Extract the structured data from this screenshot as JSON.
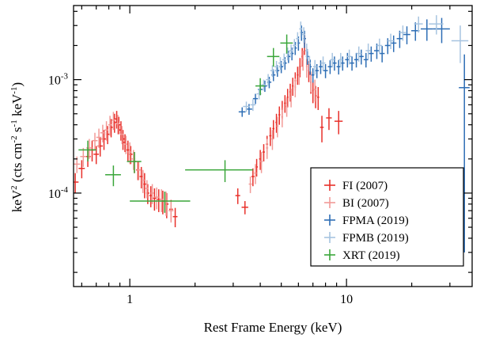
{
  "chart_data": {
    "type": "scatter",
    "x_scale": "log",
    "y_scale": "log",
    "xlim": [
      0.55,
      38
    ],
    "ylim": [
      1.5e-05,
      0.0045
    ],
    "xlabel": "Rest Frame Energy (keV)",
    "ylabel_parts": {
      "pre": "keV",
      "sup1": "2",
      "mid": " (cts cm",
      "sup2": "-2",
      "mid2": " s",
      "sup3": "-1",
      "mid3": " keV",
      "sup4": "-1",
      "post": ")"
    },
    "x_ticks": [
      {
        "value": 1,
        "label": "1"
      },
      {
        "value": 10,
        "label": "10"
      }
    ],
    "y_ticks": [
      {
        "value": 0.0001,
        "base": "10",
        "exp": "-4"
      },
      {
        "value": 0.001,
        "base": "10",
        "exp": "-3"
      }
    ],
    "grid": false,
    "legend_position": "bottom-right",
    "series": [
      {
        "name": "FI (2007)",
        "color": "#e8302a",
        "points": [
          [
            0.56,
            0.000125,
            0.02,
            2.5e-05
          ],
          [
            0.6,
            0.000165,
            0.02,
            3e-05
          ],
          [
            0.64,
            0.00021,
            0.02,
            4e-05
          ],
          [
            0.67,
            0.00024,
            0.02,
            5e-05
          ],
          [
            0.7,
            0.00022,
            0.02,
            4e-05
          ],
          [
            0.73,
            0.00026,
            0.02,
            5e-05
          ],
          [
            0.76,
            0.0003,
            0.02,
            6e-05
          ],
          [
            0.79,
            0.00033,
            0.015,
            6e-05
          ],
          [
            0.82,
            0.00038,
            0.015,
            7e-05
          ],
          [
            0.85,
            0.00042,
            0.015,
            8e-05
          ],
          [
            0.87,
            0.00045,
            0.015,
            8e-05
          ],
          [
            0.89,
            0.0004,
            0.015,
            7e-05
          ],
          [
            0.91,
            0.00036,
            0.015,
            7e-05
          ],
          [
            0.93,
            0.0003,
            0.015,
            6e-05
          ],
          [
            0.95,
            0.00028,
            0.015,
            5e-05
          ],
          [
            0.98,
            0.00024,
            0.015,
            5e-05
          ],
          [
            1.01,
            0.00022,
            0.02,
            4e-05
          ],
          [
            1.05,
            0.00019,
            0.02,
            4e-05
          ],
          [
            1.09,
            0.00016,
            0.02,
            3e-05
          ],
          [
            1.13,
            0.00014,
            0.02,
            3e-05
          ],
          [
            1.17,
            0.00012,
            0.02,
            3e-05
          ],
          [
            1.21,
            0.0001,
            0.02,
            2e-05
          ],
          [
            1.25,
            9.5e-05,
            0.02,
            2e-05
          ],
          [
            1.3,
            9e-05,
            0.02,
            2e-05
          ],
          [
            1.36,
            8.8e-05,
            0.03,
            2e-05
          ],
          [
            1.42,
            8.5e-05,
            0.03,
            2e-05
          ],
          [
            1.48,
            8e-05,
            0.03,
            2e-05
          ],
          [
            1.55,
            7.2e-05,
            0.03,
            1.5e-05
          ],
          [
            1.62,
            6.2e-05,
            0.04,
            1.2e-05
          ],
          [
            3.15,
            9.5e-05,
            0.08,
            1.5e-05
          ],
          [
            3.4,
            7.5e-05,
            0.12,
            1e-05
          ],
          [
            3.7,
            0.00014,
            0.06,
            2.5e-05
          ],
          [
            3.85,
            0.00017,
            0.05,
            3e-05
          ],
          [
            4.0,
            0.0002,
            0.05,
            4e-05
          ],
          [
            4.15,
            0.00023,
            0.05,
            4e-05
          ],
          [
            4.3,
            0.00027,
            0.05,
            5e-05
          ],
          [
            4.45,
            0.00032,
            0.05,
            6e-05
          ],
          [
            4.6,
            0.00037,
            0.05,
            7e-05
          ],
          [
            4.75,
            0.00042,
            0.05,
            8e-05
          ],
          [
            4.9,
            0.00049,
            0.05,
            9e-05
          ],
          [
            5.05,
            0.00055,
            0.05,
            0.0001
          ],
          [
            5.2,
            0.00062,
            0.05,
            0.00011
          ],
          [
            5.35,
            0.0007,
            0.05,
            0.00013
          ],
          [
            5.5,
            0.00078,
            0.05,
            0.00014
          ],
          [
            5.65,
            0.00088,
            0.05,
            0.00016
          ],
          [
            5.8,
            0.00098,
            0.05,
            0.00018
          ],
          [
            5.95,
            0.0011,
            0.05,
            0.0002
          ],
          [
            6.1,
            0.0013,
            0.05,
            0.00025
          ],
          [
            6.25,
            0.0016,
            0.05,
            0.0003
          ],
          [
            6.4,
            0.0021,
            0.05,
            0.00045
          ],
          [
            6.55,
            0.0016,
            0.05,
            0.0003
          ],
          [
            6.7,
            0.0012,
            0.05,
            0.00025
          ],
          [
            6.85,
            0.00095,
            0.05,
            0.0002
          ],
          [
            7.0,
            0.0008,
            0.05,
            0.00018
          ],
          [
            7.2,
            0.00072,
            0.08,
            0.00016
          ],
          [
            7.4,
            0.0007,
            0.08,
            0.00016
          ],
          [
            7.7,
            0.00038,
            0.15,
            0.0001
          ],
          [
            8.3,
            0.00046,
            0.25,
            0.0001
          ],
          [
            9.2,
            0.00043,
            0.4,
            0.0001
          ]
        ]
      },
      {
        "name": "BI (2007)",
        "color": "#f29a97",
        "points": [
          [
            0.57,
            0.00018,
            0.02,
            3e-05
          ],
          [
            0.61,
            0.00021,
            0.02,
            4e-05
          ],
          [
            0.65,
            0.00025,
            0.02,
            5e-05
          ],
          [
            0.69,
            0.00029,
            0.02,
            5e-05
          ],
          [
            0.72,
            0.00031,
            0.02,
            6e-05
          ],
          [
            0.75,
            0.00034,
            0.02,
            6e-05
          ],
          [
            0.78,
            0.00036,
            0.015,
            7e-05
          ],
          [
            0.81,
            0.0004,
            0.015,
            8e-05
          ],
          [
            0.84,
            0.00044,
            0.015,
            8e-05
          ],
          [
            0.88,
            0.00041,
            0.015,
            8e-05
          ],
          [
            0.92,
            0.00033,
            0.015,
            6e-05
          ],
          [
            0.96,
            0.00027,
            0.015,
            5e-05
          ],
          [
            1.0,
            0.00023,
            0.02,
            5e-05
          ],
          [
            1.04,
            0.0002,
            0.02,
            4e-05
          ],
          [
            1.1,
            0.00016,
            0.02,
            3e-05
          ],
          [
            1.15,
            0.00013,
            0.02,
            3e-05
          ],
          [
            1.2,
            0.00011,
            0.02,
            2e-05
          ],
          [
            1.27,
            0.0001,
            0.02,
            2e-05
          ],
          [
            1.33,
            9.2e-05,
            0.03,
            2e-05
          ],
          [
            1.4,
            8.8e-05,
            0.03,
            2e-05
          ],
          [
            1.47,
            8.3e-05,
            0.03,
            2e-05
          ],
          [
            1.55,
            7e-05,
            0.04,
            1.5e-05
          ],
          [
            3.6,
            0.00012,
            0.06,
            2e-05
          ],
          [
            3.8,
            0.00015,
            0.05,
            3e-05
          ],
          [
            4.05,
            0.00019,
            0.05,
            4e-05
          ],
          [
            4.3,
            0.00025,
            0.05,
            5e-05
          ],
          [
            4.55,
            0.0003,
            0.05,
            6e-05
          ],
          [
            4.8,
            0.00039,
            0.05,
            8e-05
          ],
          [
            5.05,
            0.00047,
            0.05,
            9e-05
          ],
          [
            5.3,
            0.00058,
            0.05,
            0.00011
          ],
          [
            5.55,
            0.0007,
            0.05,
            0.00013
          ],
          [
            5.8,
            0.00086,
            0.05,
            0.00016
          ],
          [
            6.05,
            0.0011,
            0.05,
            0.0002
          ],
          [
            6.3,
            0.0015,
            0.05,
            0.0003
          ],
          [
            6.55,
            0.0013,
            0.05,
            0.00026
          ],
          [
            6.85,
            0.00098,
            0.05,
            0.0002
          ],
          [
            7.15,
            0.00082,
            0.08,
            0.00018
          ]
        ]
      },
      {
        "name": "FPMA (2019)",
        "color": "#2e6eb5",
        "points": [
          [
            3.3,
            0.00052,
            0.12,
            5e-05
          ],
          [
            3.55,
            0.00055,
            0.12,
            6e-05
          ],
          [
            3.8,
            0.00068,
            0.1,
            7e-05
          ],
          [
            4.0,
            0.00082,
            0.1,
            9e-05
          ],
          [
            4.2,
            0.00088,
            0.1,
            0.0001
          ],
          [
            4.4,
            0.00095,
            0.1,
            0.00011
          ],
          [
            4.6,
            0.0011,
            0.1,
            0.00013
          ],
          [
            4.8,
            0.0012,
            0.1,
            0.00014
          ],
          [
            5.0,
            0.0013,
            0.1,
            0.00016
          ],
          [
            5.2,
            0.0014,
            0.1,
            0.00018
          ],
          [
            5.4,
            0.0016,
            0.1,
            0.0002
          ],
          [
            5.6,
            0.0017,
            0.1,
            0.00022
          ],
          [
            5.8,
            0.0019,
            0.1,
            0.00025
          ],
          [
            6.0,
            0.0021,
            0.1,
            0.0003
          ],
          [
            6.2,
            0.0026,
            0.1,
            0.0004
          ],
          [
            6.4,
            0.0023,
            0.1,
            0.0004
          ],
          [
            6.6,
            0.0016,
            0.1,
            0.00025
          ],
          [
            6.8,
            0.0013,
            0.1,
            0.0002
          ],
          [
            7.0,
            0.0011,
            0.1,
            0.00016
          ],
          [
            7.3,
            0.0012,
            0.15,
            0.00017
          ],
          [
            7.6,
            0.0013,
            0.15,
            0.00018
          ],
          [
            8.0,
            0.0012,
            0.2,
            0.00017
          ],
          [
            8.4,
            0.0013,
            0.2,
            0.00018
          ],
          [
            8.8,
            0.0014,
            0.2,
            0.0002
          ],
          [
            9.2,
            0.0013,
            0.2,
            0.00019
          ],
          [
            9.6,
            0.0014,
            0.2,
            0.0002
          ],
          [
            10.1,
            0.0015,
            0.25,
            0.00022
          ],
          [
            10.6,
            0.0014,
            0.25,
            0.0002
          ],
          [
            11.1,
            0.0015,
            0.25,
            0.00022
          ],
          [
            11.7,
            0.0016,
            0.3,
            0.00024
          ],
          [
            12.3,
            0.0015,
            0.3,
            0.00022
          ],
          [
            13.0,
            0.0017,
            0.35,
            0.00026
          ],
          [
            13.8,
            0.0018,
            0.4,
            0.00028
          ],
          [
            14.6,
            0.0017,
            0.4,
            0.00028
          ],
          [
            15.5,
            0.002,
            0.45,
            0.00032
          ],
          [
            16.5,
            0.0021,
            0.5,
            0.00035
          ],
          [
            17.6,
            0.0023,
            0.55,
            0.0004
          ],
          [
            19.0,
            0.0025,
            0.7,
            0.00045
          ],
          [
            20.8,
            0.0027,
            0.9,
            0.0005
          ],
          [
            23.5,
            0.0028,
            1.5,
            0.0006
          ],
          [
            27.5,
            0.0028,
            2.5,
            0.0007
          ],
          [
            35.0,
            0.00085,
            2.0,
            0.00082
          ]
        ]
      },
      {
        "name": "FPMB (2019)",
        "color": "#a7c4e0",
        "points": [
          [
            3.45,
            0.00058,
            0.12,
            6e-05
          ],
          [
            3.7,
            0.0006,
            0.1,
            7e-05
          ],
          [
            3.95,
            0.00075,
            0.1,
            8e-05
          ],
          [
            4.15,
            0.0009,
            0.1,
            0.0001
          ],
          [
            4.35,
            0.001,
            0.1,
            0.00012
          ],
          [
            4.55,
            0.0012,
            0.1,
            0.00014
          ],
          [
            4.75,
            0.0013,
            0.1,
            0.00016
          ],
          [
            4.95,
            0.0014,
            0.1,
            0.00018
          ],
          [
            5.15,
            0.0015,
            0.1,
            0.0002
          ],
          [
            5.35,
            0.0017,
            0.1,
            0.00022
          ],
          [
            5.55,
            0.0018,
            0.1,
            0.00024
          ],
          [
            5.75,
            0.002,
            0.1,
            0.00028
          ],
          [
            5.95,
            0.0023,
            0.1,
            0.00032
          ],
          [
            6.15,
            0.0028,
            0.1,
            0.00045
          ],
          [
            6.35,
            0.0025,
            0.1,
            0.0004
          ],
          [
            6.55,
            0.0018,
            0.1,
            0.00028
          ],
          [
            6.75,
            0.0014,
            0.1,
            0.00022
          ],
          [
            7.15,
            0.0013,
            0.15,
            0.00019
          ],
          [
            7.8,
            0.0014,
            0.2,
            0.0002
          ],
          [
            8.6,
            0.0015,
            0.2,
            0.00022
          ],
          [
            9.4,
            0.0015,
            0.2,
            0.00022
          ],
          [
            10.3,
            0.0016,
            0.25,
            0.00024
          ],
          [
            11.4,
            0.0017,
            0.3,
            0.00026
          ],
          [
            12.6,
            0.0018,
            0.35,
            0.00028
          ],
          [
            14.2,
            0.002,
            0.4,
            0.0003
          ],
          [
            16.0,
            0.0022,
            0.5,
            0.00034
          ],
          [
            18.2,
            0.0026,
            0.6,
            0.0004
          ],
          [
            21.5,
            0.0031,
            1.0,
            0.0005
          ],
          [
            26.0,
            0.0031,
            2.0,
            0.0006
          ],
          [
            33.5,
            0.0022,
            3.0,
            0.0008
          ]
        ]
      },
      {
        "name": "XRT (2019)",
        "color": "#3aa63a",
        "points": [
          [
            0.64,
            0.00024,
            0.06,
            5e-05
          ],
          [
            0.84,
            0.000145,
            0.07,
            3e-05
          ],
          [
            1.05,
            0.00019,
            0.08,
            4e-05
          ],
          [
            1.45,
            8.5e-05,
            0.45,
            1.8e-05
          ],
          [
            2.75,
            0.00016,
            0.95,
            3.5e-05
          ],
          [
            4.0,
            0.00088,
            0.2,
            0.00015
          ],
          [
            4.6,
            0.0016,
            0.3,
            0.0003
          ],
          [
            5.3,
            0.0021,
            0.35,
            0.0004
          ]
        ]
      }
    ]
  }
}
